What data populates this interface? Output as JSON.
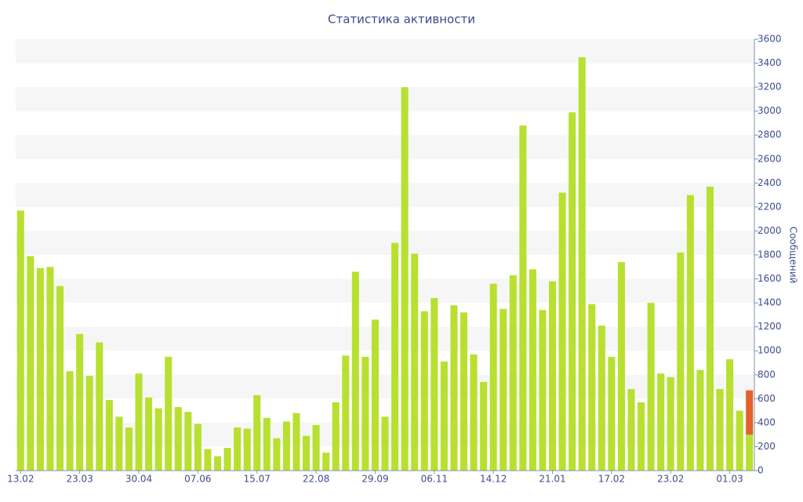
{
  "chart_data": {
    "type": "bar",
    "title": "Статистика активности",
    "y_label": "Сообщений",
    "categories": [
      "13.02",
      null,
      null,
      null,
      null,
      null,
      "23.03",
      null,
      null,
      null,
      null,
      null,
      "30.04",
      null,
      null,
      null,
      null,
      null,
      "07.06",
      null,
      null,
      null,
      null,
      null,
      "15.07",
      null,
      null,
      null,
      null,
      null,
      "22.08",
      null,
      null,
      null,
      null,
      null,
      "29.09",
      null,
      null,
      null,
      null,
      null,
      "06.11",
      null,
      null,
      null,
      null,
      null,
      "14.12",
      null,
      null,
      null,
      null,
      null,
      "21.01",
      null,
      null,
      null,
      null,
      null,
      "17.02",
      null,
      null,
      null,
      null,
      null,
      "23.02",
      null,
      null,
      null,
      null,
      null,
      "01.03",
      null,
      null
    ],
    "series": [
      {
        "color": "#b8e030",
        "values": [
          2170,
          1790,
          1690,
          1700,
          1540,
          830,
          1140,
          790,
          1070,
          590,
          450,
          360,
          810,
          610,
          520,
          950,
          530,
          490,
          390,
          180,
          120,
          190,
          360,
          350,
          630,
          440,
          270,
          410,
          480,
          290,
          380,
          150,
          570,
          960,
          1660,
          950,
          1260,
          450,
          1900,
          3200,
          1810,
          1330,
          1440,
          910,
          1380,
          1320,
          970,
          740,
          1560,
          1350,
          1630,
          2880,
          1680,
          1340,
          1580,
          2320,
          2990,
          3450,
          1390,
          1210,
          950,
          1740,
          680,
          570,
          1400,
          810,
          780,
          1820,
          2300,
          840,
          2370,
          680,
          930,
          500,
          300
        ]
      },
      {
        "color": "#e2622a",
        "values": [
          null,
          null,
          null,
          null,
          null,
          null,
          null,
          null,
          null,
          null,
          null,
          null,
          null,
          null,
          null,
          null,
          null,
          null,
          null,
          null,
          null,
          null,
          null,
          null,
          null,
          null,
          null,
          null,
          null,
          null,
          null,
          null,
          null,
          null,
          null,
          null,
          null,
          null,
          null,
          null,
          null,
          null,
          null,
          null,
          null,
          null,
          null,
          null,
          null,
          null,
          null,
          null,
          null,
          null,
          null,
          null,
          null,
          null,
          null,
          null,
          null,
          null,
          null,
          null,
          null,
          null,
          null,
          null,
          null,
          null,
          null,
          null,
          null,
          null,
          370
        ]
      }
    ],
    "ylim": [
      0,
      3600
    ],
    "yticks": [
      0,
      200,
      400,
      600,
      800,
      1000,
      1200,
      1400,
      1600,
      1800,
      2000,
      2200,
      2400,
      2600,
      2800,
      3000,
      3200,
      3400,
      3600
    ],
    "y_axis_side": "right",
    "grid": "bands",
    "stacked": true
  }
}
